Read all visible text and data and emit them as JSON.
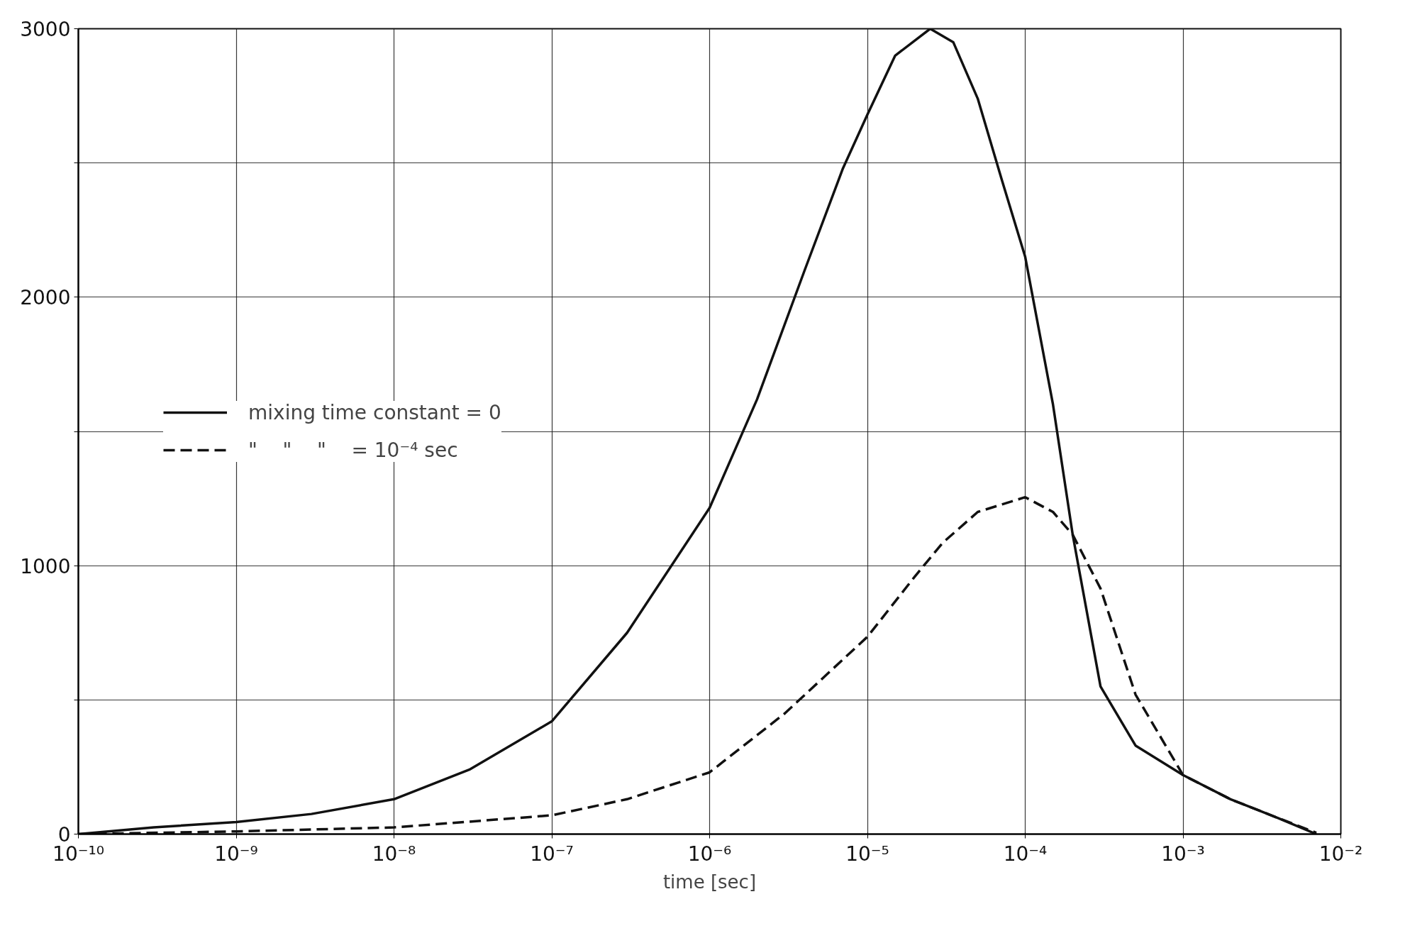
{
  "chart_data": {
    "type": "line",
    "xlabel": "time [sec]",
    "log": "x",
    "xlim": [
      1e-10,
      0.01
    ],
    "xticks": [
      {
        "value": 1e-10,
        "label": "10⁻¹⁰"
      },
      {
        "value": 1e-09,
        "label": "10⁻⁹"
      },
      {
        "value": 1e-08,
        "label": "10⁻⁸"
      },
      {
        "value": 1e-07,
        "label": "10⁻⁷"
      },
      {
        "value": 1e-06,
        "label": "10⁻⁶"
      },
      {
        "value": 1e-05,
        "label": "10⁻⁵"
      },
      {
        "value": 0.0001,
        "label": "10⁻⁴"
      },
      {
        "value": 0.001,
        "label": "10⁻³"
      },
      {
        "value": 0.01,
        "label": "10⁻²"
      }
    ],
    "ylim": [
      0,
      3000
    ],
    "yticks": [
      0,
      {
        "value": 500,
        "label": null
      },
      1000,
      {
        "value": 1500,
        "label": null
      },
      2000,
      {
        "value": 2500,
        "label": null
      },
      3000
    ],
    "grid": true,
    "legend": "left",
    "marker": "none",
    "series": [
      {
        "name": "mixing time constant = 0",
        "color": "#111111",
        "line_style": "solid",
        "x": [
          1e-10,
          3e-10,
          1e-09,
          3e-09,
          1e-08,
          3e-08,
          1e-07,
          3e-07,
          1e-06,
          2e-06,
          4e-06,
          7e-06,
          1e-05,
          1.5e-05,
          2.5e-05,
          3.5e-05,
          5e-05,
          7e-05,
          0.0001,
          0.00015,
          0.0002,
          0.0003,
          0.0005,
          0.001,
          0.002,
          0.004,
          0.007
        ],
        "values": [
          0,
          25,
          45,
          75,
          130,
          240,
          420,
          750,
          1215,
          1620,
          2100,
          2480,
          2680,
          2900,
          3000,
          2950,
          2740,
          2450,
          2150,
          1600,
          1115,
          550,
          330,
          220,
          130,
          60,
          0
        ]
      },
      {
        "name": "\"    \"    \"    = 10⁻⁴ sec",
        "color": "#111111",
        "line_style": "dashed",
        "x": [
          1e-10,
          1e-09,
          1e-08,
          1e-07,
          3e-07,
          1e-06,
          3e-06,
          1e-05,
          2e-05,
          3e-05,
          5e-05,
          0.0001,
          0.00015,
          0.0002,
          0.0003,
          0.0005,
          0.001,
          0.002,
          0.004,
          0.007
        ],
        "values": [
          0,
          10,
          25,
          70,
          130,
          230,
          450,
          735,
          960,
          1085,
          1200,
          1255,
          1200,
          1115,
          915,
          520,
          220,
          130,
          60,
          5
        ]
      }
    ]
  }
}
